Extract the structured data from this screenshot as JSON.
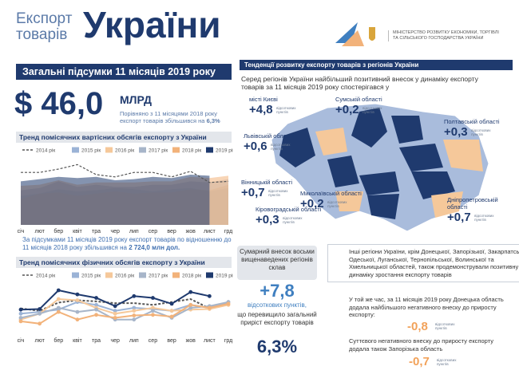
{
  "header": {
    "title_small_1": "Експорт",
    "title_small_2": "товарів",
    "title_big": "України",
    "ministry": "МІНІСТЕРСТВО РОЗВИТКУ ЕКОНОМІКИ, ТОРГІВЛІ ТА СІЛЬСЬКОГО ГОСПОДАРСТВА УКРАЇНИ"
  },
  "summary": {
    "heading": "Загальні підсумки 11 місяців 2019 року",
    "amount": "$ 46,0",
    "unit": "МЛРД",
    "note": "Порівняно з 11 місяцями 2018 року експорт товарів збільшився на",
    "note_value": "6,3%",
    "footer_text": "За підсумками 11 місяців 2019 року експорт товарів по відношенню до 11 місяців 2018 року збільшився на",
    "footer_value": "2 724,0 млн дол."
  },
  "chart_data": [
    {
      "type": "area",
      "title": "Тренд помісячних вартісних обсягів експорту з України",
      "categories": [
        "січ",
        "лют",
        "бер",
        "квіт",
        "тра",
        "чер",
        "лип",
        "сер",
        "вер",
        "жов",
        "лист",
        "грд"
      ],
      "ylim": [
        0,
        6
      ],
      "series": [
        {
          "name": "2014 рік",
          "color": "#555555",
          "dashed": true,
          "values": [
            4.7,
            4.7,
            5.0,
            5.4,
            4.5,
            4.3,
            4.7,
            4.7,
            4.3,
            4.8,
            3.8,
            3.9
          ]
        },
        {
          "name": "2015 рік",
          "color": "#9bb3d6",
          "values": [
            2.6,
            2.8,
            3.2,
            3.0,
            3.1,
            3.3,
            3.2,
            3.0,
            3.2,
            3.3,
            3.0,
            3.3
          ]
        },
        {
          "name": "2016 рік",
          "color": "#f5c89a",
          "values": [
            2.3,
            2.8,
            2.9,
            2.6,
            2.8,
            3.0,
            2.8,
            2.9,
            2.9,
            3.2,
            3.1,
            3.6
          ]
        },
        {
          "name": "2017 рік",
          "color": "#a7b5c9",
          "values": [
            3.1,
            3.3,
            3.9,
            3.4,
            3.6,
            3.4,
            3.4,
            3.6,
            3.6,
            3.9,
            3.8,
            4.1
          ]
        },
        {
          "name": "2018 рік",
          "color": "#f2b27a",
          "values": [
            3.5,
            3.6,
            4.0,
            3.6,
            3.8,
            3.8,
            3.8,
            3.9,
            3.9,
            4.3,
            4.2,
            4.4
          ]
        },
        {
          "name": "2019 рік",
          "color": "#1f3a6e",
          "values": [
            3.9,
            4.1,
            4.3,
            4.2,
            4.3,
            4.0,
            4.1,
            4.3,
            4.2,
            4.5,
            4.4,
            null
          ]
        }
      ]
    },
    {
      "type": "line",
      "title": "Тренд помісячних фізичних обсягів експорту з України",
      "categories": [
        "січ",
        "лют",
        "бер",
        "квіт",
        "тра",
        "чер",
        "лип",
        "сер",
        "вер",
        "жов",
        "лист",
        "грд"
      ],
      "ylim": [
        9,
        18
      ],
      "series": [
        {
          "name": "2014 рік",
          "color": "#555555",
          "dashed": true,
          "values": [
            13.4,
            13.0,
            14.4,
            14.8,
            14.6,
            14.3,
            14.3,
            14.0,
            14.5,
            15.0,
            13.4,
            14.2
          ]
        },
        {
          "name": "2015 рік",
          "color": "#9bb3d6",
          "values": [
            12.5,
            12.8,
            13.2,
            14.5,
            14.0,
            13.0,
            13.5,
            13.3,
            13.0,
            14.0,
            13.5,
            14.5
          ]
        },
        {
          "name": "2016 рік",
          "color": "#f5c89a",
          "values": [
            11.5,
            12.5,
            15.0,
            14.8,
            13.5,
            12.5,
            13.0,
            13.5,
            13.0,
            13.2,
            13.3,
            14.0
          ]
        },
        {
          "name": "2017 рік",
          "color": "#a7b5c9",
          "values": [
            11.8,
            12.5,
            13.5,
            12.8,
            13.2,
            11.5,
            11.5,
            13.0,
            11.8,
            13.5,
            13.8,
            14.5
          ]
        },
        {
          "name": "2018 рік",
          "color": "#f2b27a",
          "values": [
            11.2,
            10.8,
            12.8,
            11.5,
            12.3,
            11.8,
            12.2,
            12.3,
            12.0,
            14.0,
            13.5,
            14.2
          ]
        },
        {
          "name": "2019 рік",
          "color": "#1f3a6e",
          "values": [
            13.2,
            13.3,
            16.5,
            15.8,
            15.2,
            13.8,
            15.5,
            15.2,
            14.2,
            16.2,
            15.5,
            null
          ]
        }
      ]
    }
  ],
  "regions": {
    "heading": "Тенденції розвитку експорту товарів з регіонів України",
    "intro": "Серед регіонів України найбільший позитивний внесок у динаміку експорту товарів за 11 місяців 2019 року спостерігався у",
    "items": [
      {
        "name": "місті Києві",
        "value": "+4,8",
        "unit": "відсоткових пунктів"
      },
      {
        "name": "Сумській області",
        "value": "+0,2",
        "unit": "відсоткових пунктів"
      },
      {
        "name": "Полтавській області",
        "value": "+0,3",
        "unit": "відсоткових пунктів"
      },
      {
        "name": "Львівській області",
        "value": "+0,6",
        "unit": "відсоткових пунктів"
      },
      {
        "name": "Вінницькій області",
        "value": "+0,7",
        "unit": "відсоткових пунктів"
      },
      {
        "name": "Кіровоградській області",
        "value": "+0,3",
        "unit": "відсоткових пунктів"
      },
      {
        "name": "Миколаївській області",
        "value": "+0,2",
        "unit": "відсоткових пунктів"
      },
      {
        "name": "Дніпропетровській області",
        "value": "+0,7",
        "unit": "відсоткових пунктів"
      }
    ]
  },
  "total": {
    "lead": "Сумарний внесок восьми вищенаведених регіонів склав",
    "value": "+7,8",
    "unit": "відсоткових пунктів,",
    "text": "що перевищило загальний приріст експорту товарів",
    "growth": "6,3%"
  },
  "others": {
    "text": "Інші регіони України, крім Донецької, Запорізької, Закарпатської, Одеської, Луганської, Тернопільської, Волинської та Хмельницької областей, також продемонстрували позитивну динаміку зростання експорту товарів",
    "negative_1": {
      "text": "У той же час, за 11 місяців 2019 року Донецька область додала найбільшого негативного внеску до приросту експорту:",
      "value": "-0,8",
      "unit": "відсоткових пунктів"
    },
    "negative_2": {
      "text": "Суттєвого негативного внеску до приросту експорту додала також Запорізька область",
      "value": "-0,7",
      "unit": "відсоткових пунктів"
    }
  }
}
